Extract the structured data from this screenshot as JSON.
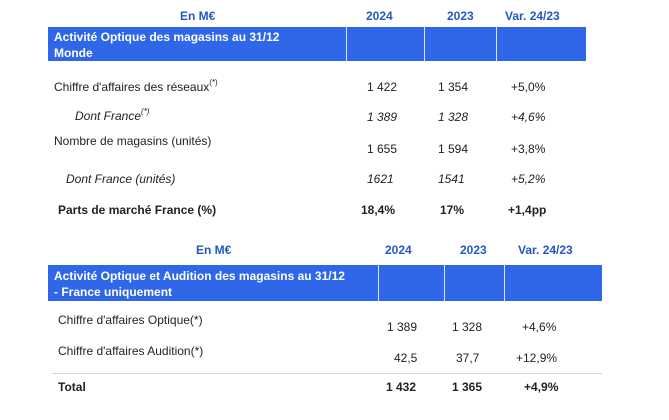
{
  "table1": {
    "header": {
      "label": "En M€",
      "col2024": "2024",
      "col2023": "2023",
      "colVar": "Var. 24/23"
    },
    "title_line1": "Activité Optique des magasins au 31/12",
    "title_line2": "Monde",
    "rows": [
      {
        "label": "Chiffre d'affaires des réseaux",
        "sup": "(*)",
        "v2024": "1 422",
        "v2023": "1 354",
        "var": "+5,0%"
      },
      {
        "label": "Dont France",
        "sup": "(*)",
        "v2024": "1 389",
        "v2023": "1 328",
        "var": "+4,6%"
      },
      {
        "label": "Nombre de magasins (unités)",
        "v2024": "1 655",
        "v2023": "1 594",
        "var": "+3,8%"
      },
      {
        "label": "Dont France (unités)",
        "v2024": "1621",
        "v2023": "1541",
        "var": "+5,2%"
      },
      {
        "label": "Parts de marché France (%)",
        "v2024": "18,4%",
        "v2023": "17%",
        "var": "+1,4pp"
      }
    ]
  },
  "table2": {
    "header": {
      "label": "En M€",
      "col2024": "2024",
      "col2023": "2023",
      "colVar": "Var. 24/23"
    },
    "title_line1": "Activité Optique et Audition des magasins au 31/12",
    "title_line2": "- France uniquement",
    "rows": [
      {
        "label": "Chiffre d'affaires Optique(*)",
        "v2024": "1 389",
        "v2023": "1 328",
        "var": "+4,6%"
      },
      {
        "label": "Chiffre d'affaires Audition(*)",
        "v2024": "42,5",
        "v2023": "37,7",
        "var": "+12,9%"
      },
      {
        "label": "Total",
        "v2024": "1 432",
        "v2023": "1 365",
        "var": "+4,9%"
      }
    ]
  }
}
